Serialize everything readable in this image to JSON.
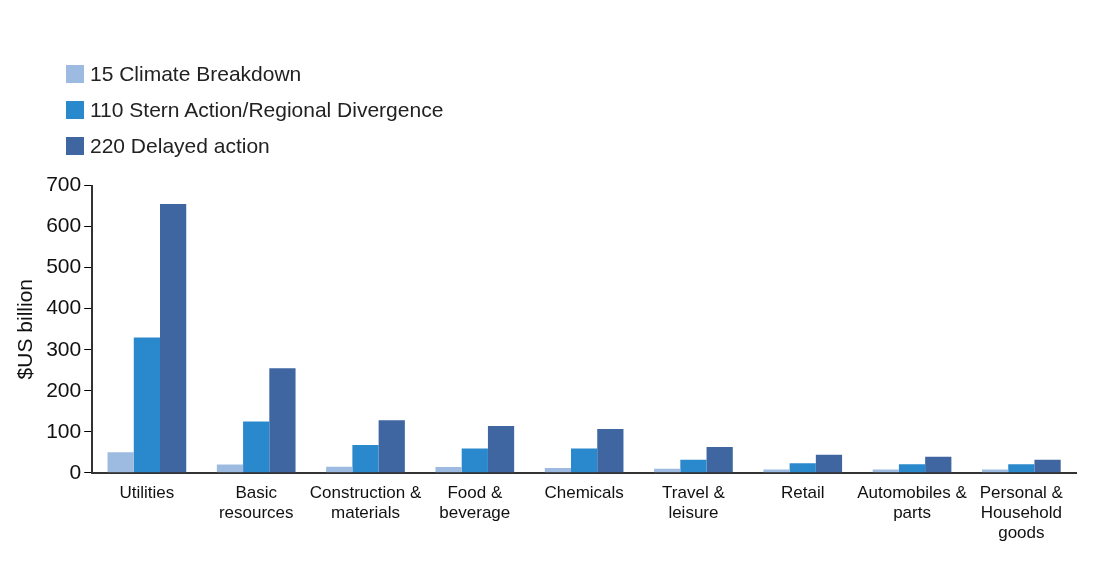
{
  "chart_data": {
    "type": "bar",
    "ylabel": "$US billion",
    "categories": [
      "Utilities",
      "Basic resources",
      "Construction & materials",
      "Food & beverage",
      "Chemicals",
      "Travel & leisure",
      "Retail",
      "Automobiles & parts",
      "Personal & Household goods"
    ],
    "series": [
      {
        "name": "15 Climate Breakdown",
        "color": "#9dbbe0",
        "values": [
          50,
          20,
          15,
          14,
          12,
          10,
          8,
          8,
          8
        ]
      },
      {
        "name": "110 Stern Action/Regional Divergence",
        "color": "#2a88cc",
        "values": [
          330,
          125,
          68,
          59,
          59,
          32,
          23,
          21,
          21
        ]
      },
      {
        "name": "220 Delayed action",
        "color": "#3f66a0",
        "values": [
          655,
          255,
          128,
          114,
          107,
          63,
          44,
          39,
          32
        ]
      }
    ],
    "ylim": [
      0,
      700
    ],
    "yticks": [
      0,
      100,
      200,
      300,
      400,
      500,
      600,
      700
    ],
    "grid": false,
    "legend": "top left"
  }
}
